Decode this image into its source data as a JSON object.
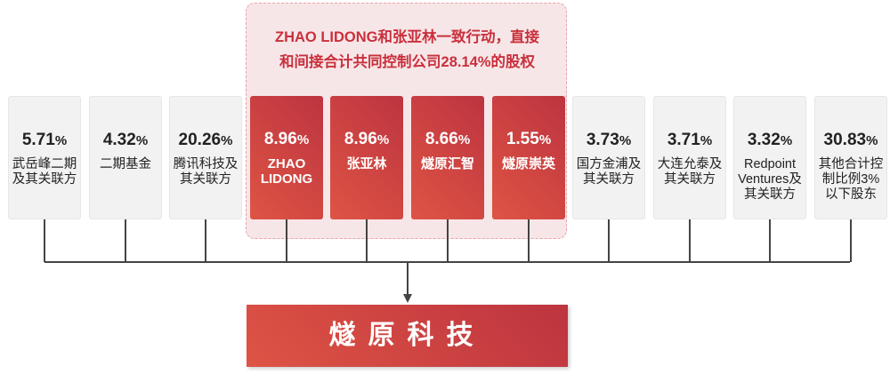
{
  "group_title": [
    "ZHAO LIDONG和张亚林一致行动，直接",
    "和间接合计共同控制公司28.14%的股权"
  ],
  "shareholders": [
    {
      "pct": "5.71",
      "name": "武岳峰二期及其关联方",
      "style": "grey"
    },
    {
      "pct": "4.32",
      "name": "二期基金",
      "style": "grey"
    },
    {
      "pct": "20.26",
      "name": "腾讯科技及其关联方",
      "style": "grey"
    },
    {
      "pct": "8.96",
      "name": "ZHAO LIDONG",
      "style": "red"
    },
    {
      "pct": "8.96",
      "name": "张亚林",
      "style": "red"
    },
    {
      "pct": "8.66",
      "name": "燧原汇智",
      "style": "red"
    },
    {
      "pct": "1.55",
      "name": "燧原崇英",
      "style": "red"
    },
    {
      "pct": "3.73",
      "name": "国方金浦及其关联方",
      "style": "grey"
    },
    {
      "pct": "3.71",
      "name": "大连允泰及其关联方",
      "style": "grey"
    },
    {
      "pct": "3.32",
      "name": "Redpoint Ventures及其关联方",
      "style": "grey"
    },
    {
      "pct": "30.83",
      "name": "其他合计控制比例3%以下股东",
      "style": "grey"
    }
  ],
  "percent_sign": "%",
  "company": "燧原科技",
  "colors": {
    "accent": "#c9303c",
    "grey_box": "#f2f2f2",
    "group_bg": "#f7e6e8"
  }
}
